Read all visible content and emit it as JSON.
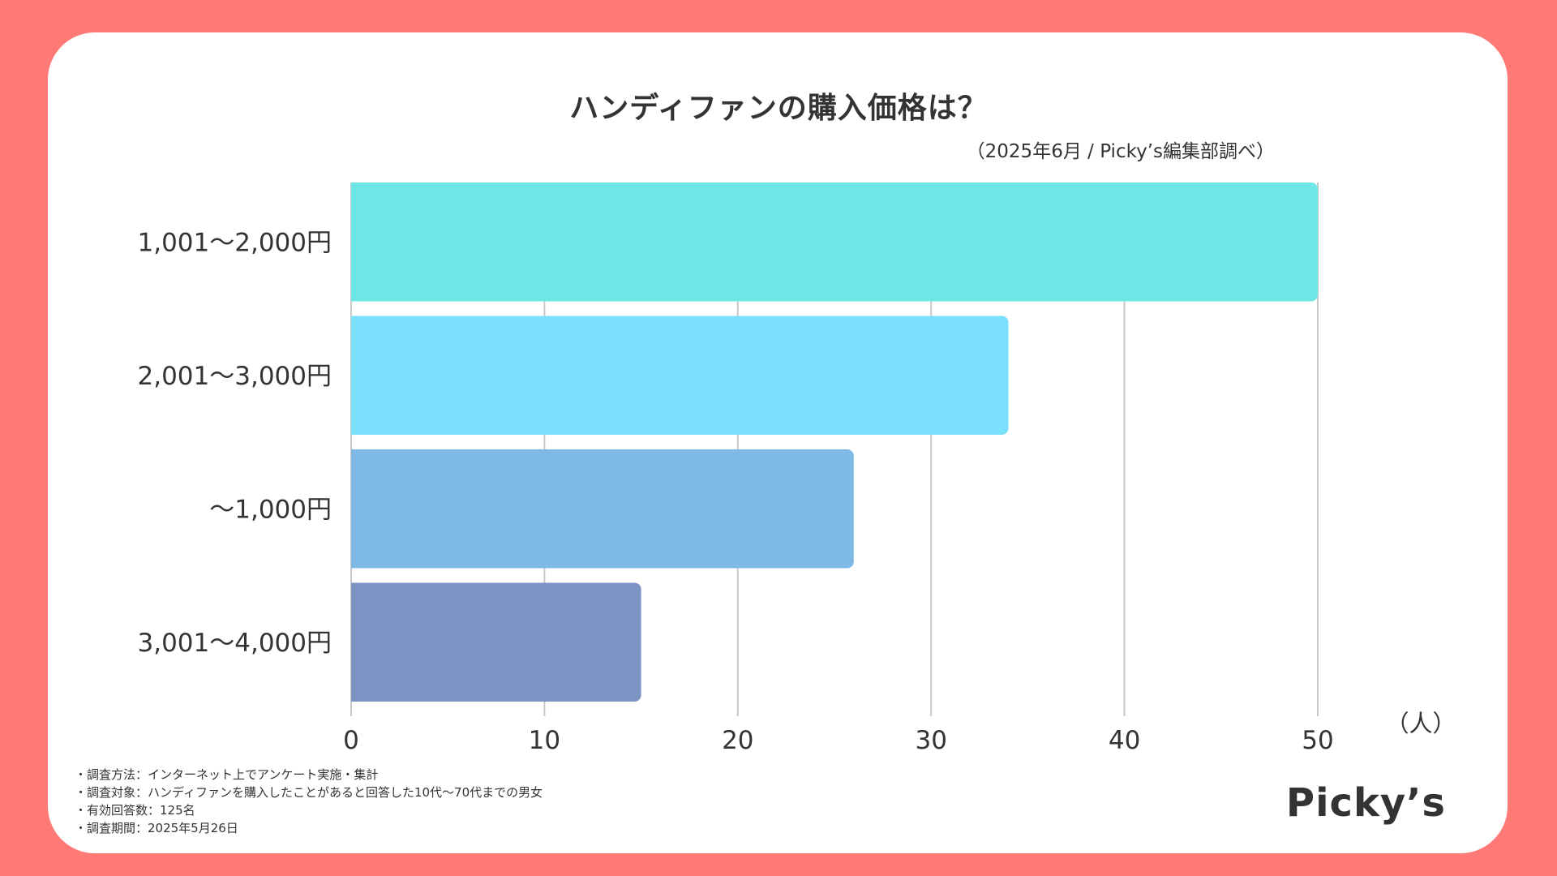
{
  "chart_data": {
    "type": "bar",
    "orientation": "horizontal",
    "title": "ハンディファンの購入価格は？",
    "subtitle": "（2025年6月 / Picky’s編集部調べ）",
    "categories": [
      "1,001〜2,000円",
      "2,001〜3,000円",
      "〜1,000円",
      "3,001〜4,000円"
    ],
    "values": [
      50,
      34,
      26,
      15
    ],
    "colors": [
      "#6DE6E6",
      "#7BE0FB",
      "#7FBAE6",
      "#7C93C3"
    ],
    "xlim": [
      0,
      50
    ],
    "xticks": [
      "0",
      "10",
      "20",
      "30",
      "40",
      "50"
    ],
    "xlabel": "（人）",
    "ylabel": "",
    "grid": "vertical"
  },
  "notes": [
    "・調査方法：インターネット上でアンケート実施・集計",
    "・調査対象：ハンディファンを購入したことがあると回答した10代〜70代までの男女",
    "・有効回答数：125名",
    "・調査期間：2025年5月26日"
  ],
  "brand": "Picky’s",
  "colors": {
    "background": "#FF7A76",
    "card": "#FFFFFF",
    "text": "#333333",
    "grid": "#C8C8C8"
  }
}
